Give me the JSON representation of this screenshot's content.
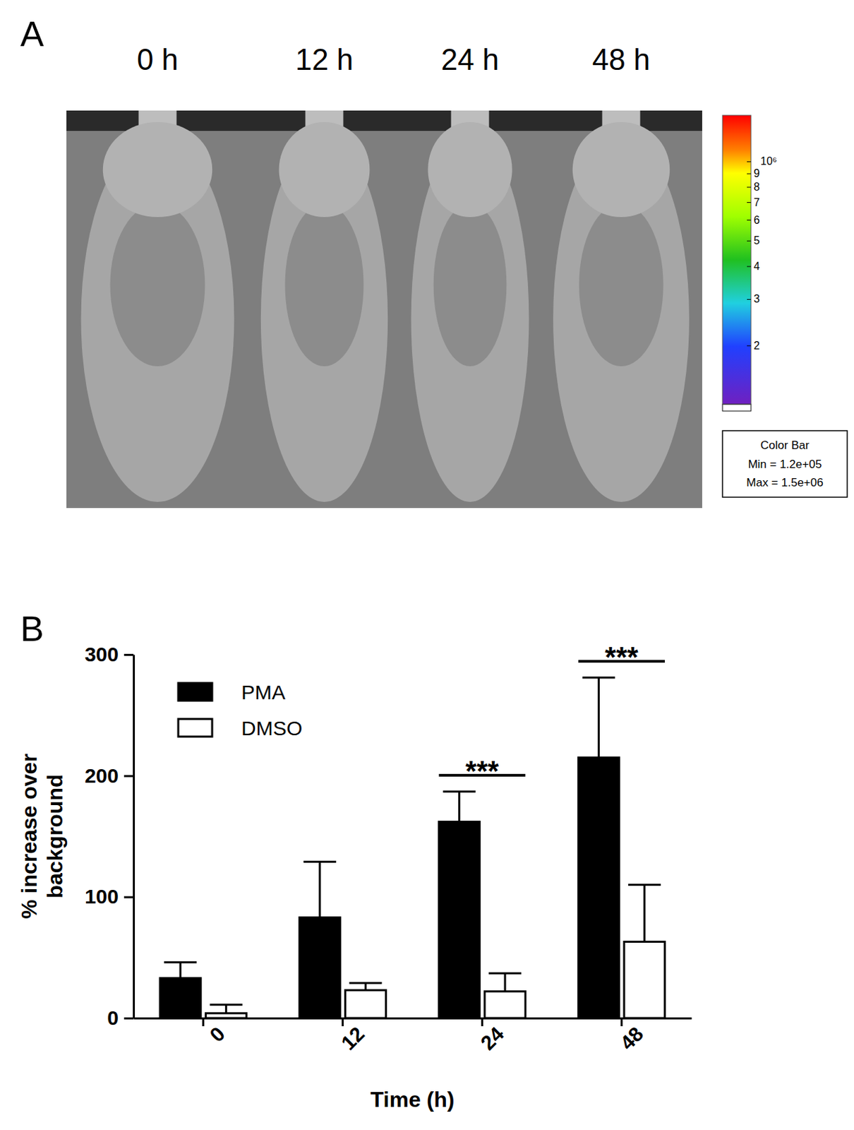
{
  "panel_a": {
    "panel_label": "A",
    "time_labels": [
      "0 h",
      "12 h",
      "24 h",
      "48 h"
    ],
    "colorbar": {
      "range": [
        120000,
        1500000
      ],
      "log": true,
      "ticks": [
        {
          "value": 1000000,
          "label": "10⁶"
        },
        {
          "value": 900000,
          "label": "9"
        },
        {
          "value": 800000,
          "label": "8"
        },
        {
          "value": 700000,
          "label": "7"
        },
        {
          "value": 600000,
          "label": "6"
        },
        {
          "value": 500000,
          "label": "5"
        },
        {
          "value": 400000,
          "label": "4"
        },
        {
          "value": 300000,
          "label": "3"
        },
        {
          "value": 200000,
          "label": "2"
        }
      ],
      "title": "Color Bar",
      "min_label": "Min = 1.2e+05",
      "max_label": "Max = 1.5e+06"
    }
  },
  "chart_data": {
    "type": "bar",
    "panel_label": "B",
    "categories": [
      "0",
      "12",
      "24",
      "48"
    ],
    "x_label": "Time (h)",
    "y_label": "% increase over\nbackground",
    "ylim": [
      0,
      300
    ],
    "yticks": [
      0,
      100,
      200,
      300
    ],
    "legend": "upper left",
    "series": [
      {
        "name": "PMA",
        "color": "#000000",
        "values": [
          33,
          83,
          162,
          215
        ],
        "errors": [
          13,
          46,
          25,
          66
        ]
      },
      {
        "name": "DMSO",
        "color": "#ffffff",
        "values": [
          4,
          23,
          22,
          63
        ],
        "errors": [
          7,
          6,
          15,
          47
        ]
      }
    ],
    "annotations": [
      {
        "text": "***",
        "category": "24"
      },
      {
        "text": "***",
        "category": "48"
      }
    ]
  }
}
